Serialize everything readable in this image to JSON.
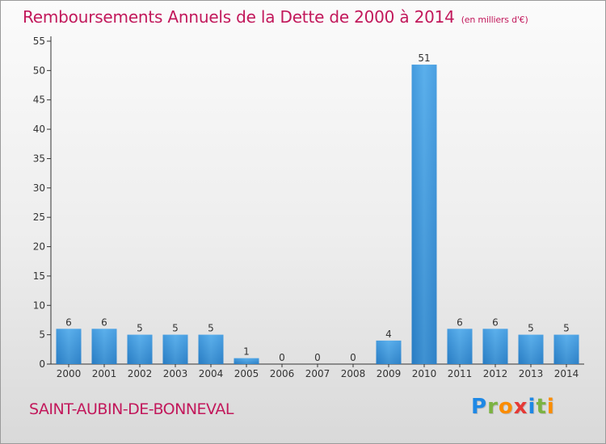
{
  "chart_data": {
    "type": "bar",
    "title": "Remboursements Annuels de la Dette de 2000 à 2014",
    "subtitle": "(en milliers d'€)",
    "categories": [
      "2000",
      "2001",
      "2002",
      "2003",
      "2004",
      "2005",
      "2006",
      "2007",
      "2008",
      "2009",
      "2010",
      "2011",
      "2012",
      "2013",
      "2014"
    ],
    "values": [
      6,
      6,
      5,
      5,
      5,
      1,
      0,
      0,
      0,
      4,
      51,
      6,
      6,
      5,
      5
    ],
    "ylim": [
      0,
      55
    ],
    "yticks": [
      0,
      5,
      10,
      15,
      20,
      25,
      30,
      35,
      40,
      45,
      50,
      55
    ],
    "xlabel": "",
    "ylabel": "",
    "grid": false,
    "bar_color": "#4a9fe0"
  },
  "footer": {
    "commune": "SAINT-AUBIN-DE-BONNEVAL",
    "logo_letters": [
      {
        "char": "P",
        "color": "#1e88e5"
      },
      {
        "char": "r",
        "color": "#7cb342"
      },
      {
        "char": "o",
        "color": "#fb8c00"
      },
      {
        "char": "x",
        "color": "#e53935"
      },
      {
        "char": "i",
        "color": "#1e88e5"
      },
      {
        "char": "t",
        "color": "#7cb342"
      },
      {
        "char": "i",
        "color": "#fb8c00"
      }
    ]
  }
}
